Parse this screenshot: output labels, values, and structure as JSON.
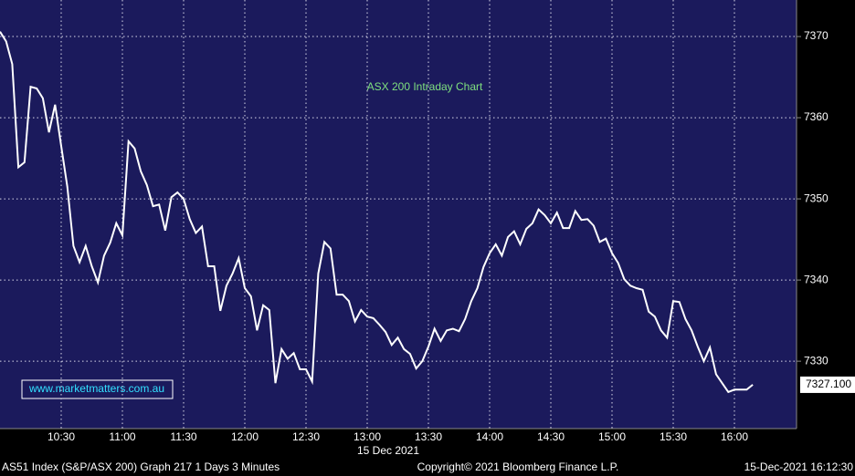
{
  "chart_data": {
    "type": "line",
    "title": "ASX 200 Intraday Chart",
    "watermark": "www.marketmatters.com.au",
    "date_label": "15 Dec 2021",
    "footer_left": "AS51 Index (S&P/ASX 200) Graph 217 1 Days 3 Minutes",
    "footer_center": "Copyright© 2021 Bloomberg Finance L.P.",
    "footer_right": "15-Dec-2021 16:12:30",
    "last_value_label": "7327.100",
    "color": "#ffffff",
    "grid": true,
    "categories": [
      null,
      null,
      null,
      null,
      null,
      null,
      null,
      null,
      null,
      null,
      "10:30",
      null,
      null,
      null,
      null,
      null,
      null,
      null,
      null,
      null,
      "11:00",
      null,
      null,
      null,
      null,
      null,
      null,
      null,
      null,
      null,
      "11:30",
      null,
      null,
      null,
      null,
      null,
      null,
      null,
      null,
      null,
      "12:00",
      null,
      null,
      null,
      null,
      null,
      null,
      null,
      null,
      null,
      "12:30",
      null,
      null,
      null,
      null,
      null,
      null,
      null,
      null,
      null,
      "13:00",
      null,
      null,
      null,
      null,
      null,
      null,
      null,
      null,
      null,
      "13:30",
      null,
      null,
      null,
      null,
      null,
      null,
      null,
      null,
      null,
      "14:00",
      null,
      null,
      null,
      null,
      null,
      null,
      null,
      null,
      null,
      "14:30",
      null,
      null,
      null,
      null,
      null,
      null,
      null,
      null,
      null,
      "15:00",
      null,
      null,
      null,
      null,
      null,
      null,
      null,
      null,
      null,
      "15:30",
      null,
      null,
      null,
      null,
      null,
      null,
      null,
      null,
      null,
      "16:00",
      null,
      null,
      null
    ],
    "values": [
      7370.6,
      7369.4,
      7366.6,
      7353.9,
      7354.5,
      7363.8,
      7363.6,
      7362.4,
      7358.2,
      7361.6,
      7356.5,
      7351.5,
      7344.2,
      7342.2,
      7344.2,
      7341.7,
      7339.7,
      7343.0,
      7344.6,
      7347.0,
      7345.5,
      7357.1,
      7356.2,
      7353.4,
      7351.7,
      7349.1,
      7349.3,
      7346.1,
      7350.2,
      7350.8,
      7350.0,
      7347.5,
      7345.8,
      7346.6,
      7341.7,
      7341.7,
      7336.2,
      7339.3,
      7340.8,
      7342.7,
      7339.0,
      7338.0,
      7333.8,
      7336.9,
      7336.3,
      7327.3,
      7331.5,
      7330.3,
      7331.0,
      7329.0,
      7329.0,
      7327.5,
      7340.8,
      7344.7,
      7343.9,
      7338.2,
      7338.2,
      7337.4,
      7334.9,
      7336.3,
      7335.5,
      7335.3,
      7334.5,
      7333.6,
      7332.0,
      7332.9,
      7331.5,
      7330.9,
      7329.1,
      7330.0,
      7331.8,
      7334.0,
      7332.5,
      7333.8,
      7334.0,
      7333.7,
      7335.2,
      7337.4,
      7339.0,
      7341.6,
      7343.3,
      7344.4,
      7343.0,
      7345.3,
      7346.0,
      7344.4,
      7346.3,
      7347.0,
      7348.7,
      7348.0,
      7347.0,
      7348.3,
      7346.4,
      7346.4,
      7348.5,
      7347.4,
      7347.5,
      7346.7,
      7344.7,
      7345.1,
      7343.3,
      7342.1,
      7340.1,
      7339.3,
      7339.0,
      7338.8,
      7336.1,
      7335.5,
      7333.8,
      7332.9,
      7337.4,
      7337.3,
      7335.2,
      7333.8,
      7331.8,
      7330.0,
      7331.7,
      7328.4,
      7327.3,
      7326.2,
      7326.5,
      7326.5,
      7326.5,
      7327.1
    ],
    "ylim": [
      7321.7,
      7374.5
    ],
    "yticks": [
      7330,
      7340,
      7350,
      7360,
      7370
    ]
  }
}
